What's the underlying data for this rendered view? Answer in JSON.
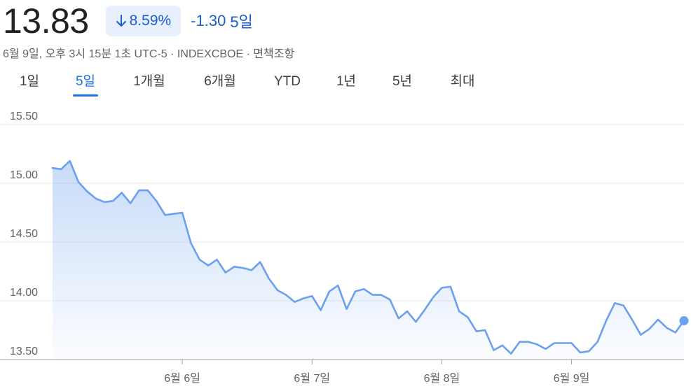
{
  "quote": {
    "price": "13.83",
    "change_percent": "8.59%",
    "change_absolute": "-1.30",
    "period": "5일",
    "direction_icon": "arrow-down-icon",
    "accent_color": "#1a5cd0"
  },
  "meta": {
    "text": "6월 9일, 오후 3시 15분 1초 UTC-5 · INDEXCBOE · 면책조항"
  },
  "tabs": [
    {
      "label": "1일",
      "active": false
    },
    {
      "label": "5일",
      "active": true
    },
    {
      "label": "1개월",
      "active": false
    },
    {
      "label": "6개월",
      "active": false
    },
    {
      "label": "YTD",
      "active": false
    },
    {
      "label": "1년",
      "active": false
    },
    {
      "label": "5년",
      "active": false
    },
    {
      "label": "최대",
      "active": false
    }
  ],
  "chart_data": {
    "type": "area",
    "ylim": [
      13.5,
      15.5
    ],
    "yticks": [
      "15.50",
      "15.00",
      "14.50",
      "14.00",
      "13.50"
    ],
    "xticks": [
      {
        "label": "6월 6일",
        "index": 15
      },
      {
        "label": "6월 7일",
        "index": 30
      },
      {
        "label": "6월 8일",
        "index": 45
      },
      {
        "label": "6월 9일",
        "index": 60
      }
    ],
    "series": [
      {
        "values": [
          15.13,
          15.12,
          15.19,
          15.01,
          14.93,
          14.87,
          14.84,
          14.85,
          14.92,
          14.83,
          14.94,
          14.94,
          14.85,
          14.73,
          14.74,
          14.75,
          14.49,
          14.35,
          14.3,
          14.35,
          14.24,
          14.29,
          14.28,
          14.26,
          14.33,
          14.19,
          14.09,
          14.05,
          13.99,
          14.02,
          14.04,
          13.92,
          14.08,
          14.13,
          13.93,
          14.08,
          14.1,
          14.05,
          14.05,
          14.01,
          13.85,
          13.91,
          13.82,
          13.92,
          14.03,
          14.11,
          14.12,
          13.91,
          13.86,
          13.74,
          13.75,
          13.58,
          13.62,
          13.55,
          13.65,
          13.65,
          13.63,
          13.59,
          13.64,
          13.64,
          13.64,
          13.56,
          13.57,
          13.65,
          13.83,
          13.98,
          13.96,
          13.84,
          13.71,
          13.76,
          13.84,
          13.77,
          13.73,
          13.83
        ],
        "color": "#6ca0ee"
      }
    ]
  }
}
